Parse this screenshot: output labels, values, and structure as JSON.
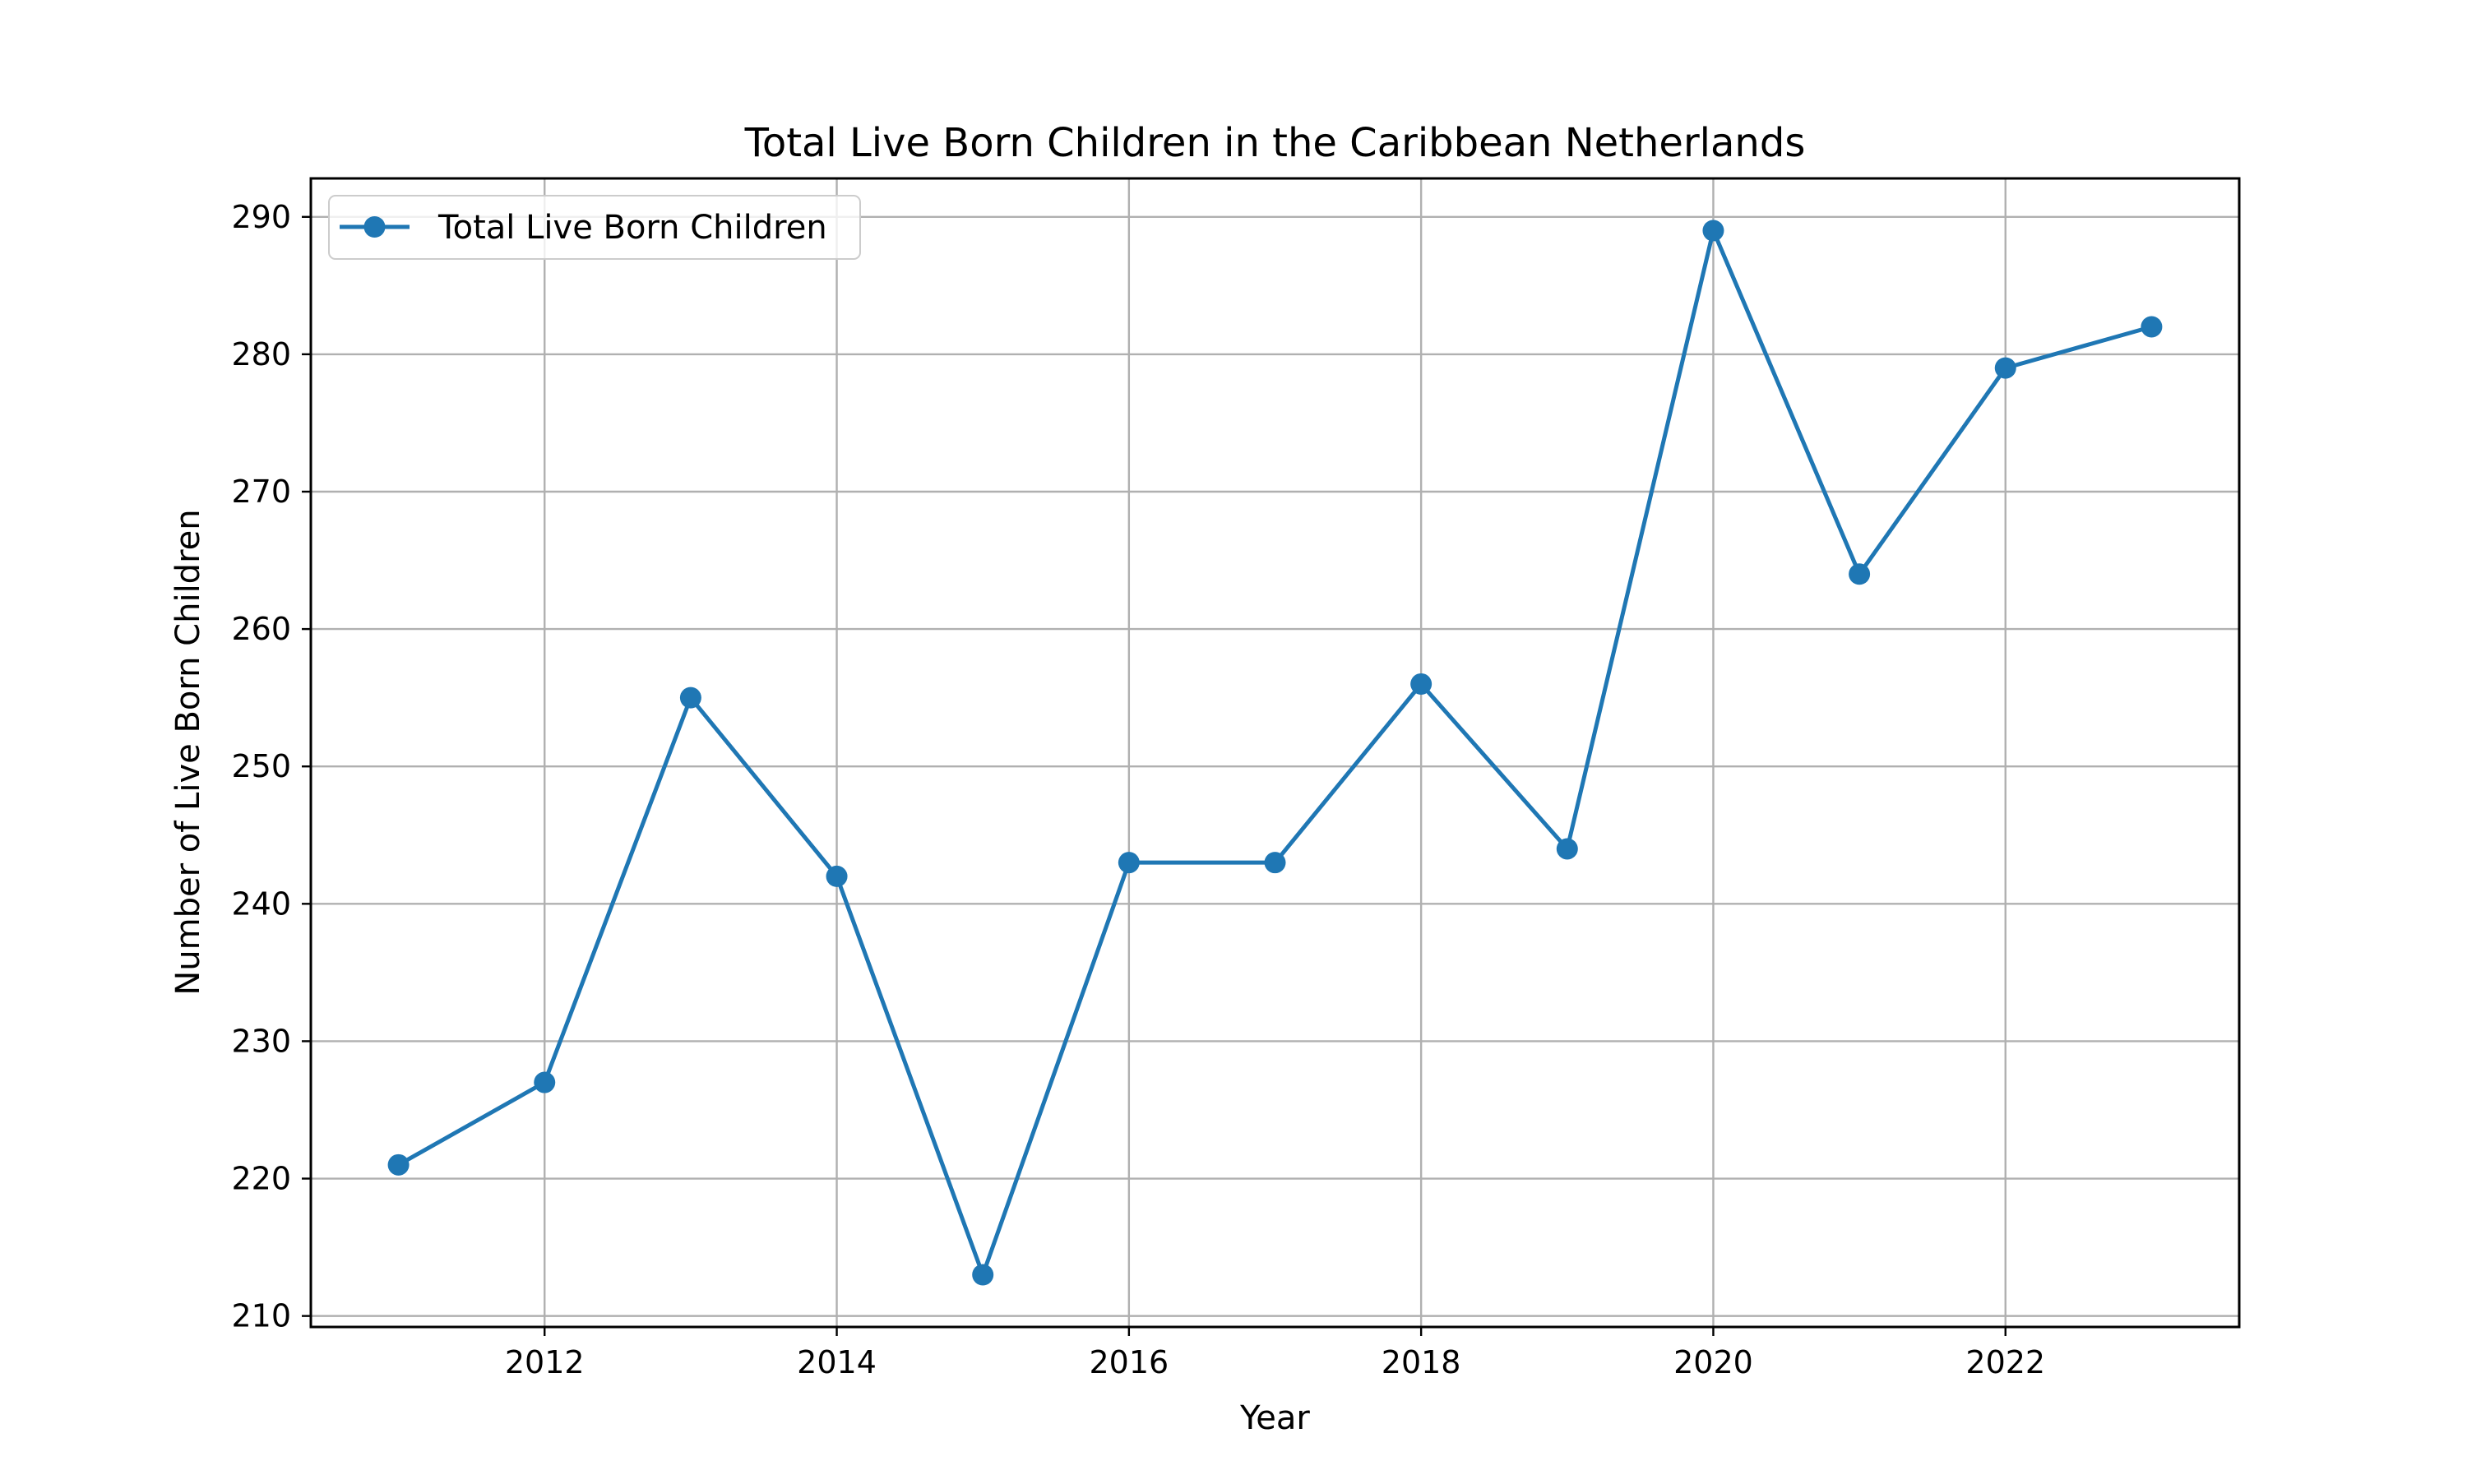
{
  "chart_data": {
    "type": "line",
    "title": "Total Live Born Children in the Caribbean Netherlands",
    "xlabel": "Year",
    "ylabel": "Number of Live Born Children",
    "x": [
      2011,
      2012,
      2013,
      2014,
      2015,
      2016,
      2017,
      2018,
      2019,
      2020,
      2021,
      2022,
      2023
    ],
    "series": [
      {
        "name": "Total Live Born Children",
        "values": [
          221,
          227,
          255,
          242,
          213,
          243,
          243,
          256,
          244,
          289,
          264,
          279,
          282
        ],
        "color": "#1f77b4",
        "marker": "circle"
      }
    ],
    "xlim": [
      2010.4,
      2023.6
    ],
    "ylim": [
      209.2,
      292.8
    ],
    "xticks": [
      2012,
      2014,
      2016,
      2018,
      2020,
      2022
    ],
    "yticks": [
      210,
      220,
      230,
      240,
      250,
      260,
      270,
      280,
      290
    ],
    "grid": true,
    "legend_position": "upper left"
  }
}
